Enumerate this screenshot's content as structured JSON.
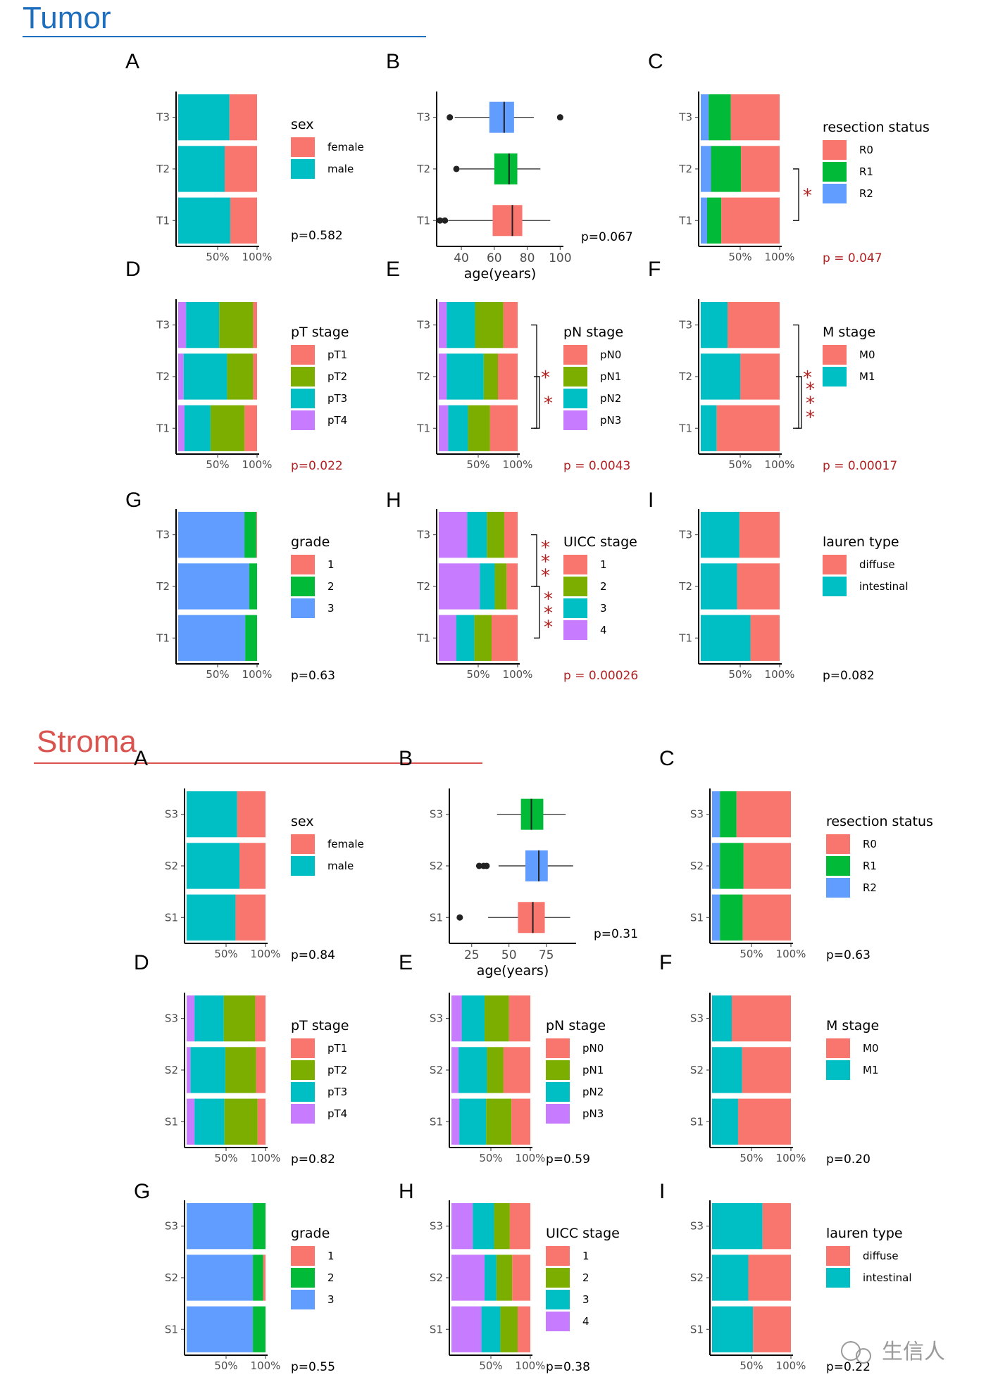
{
  "sections": [
    {
      "title": "Tumor",
      "color": "#1f6fbf",
      "ids": [
        "tA",
        "tB",
        "tC",
        "tD",
        "tE",
        "tF",
        "tG",
        "tH",
        "tI"
      ]
    },
    {
      "title": "Stroma",
      "color": "#d9534f",
      "ids": [
        "sA",
        "sB",
        "sC",
        "sD",
        "sE",
        "sF",
        "sG",
        "sH",
        "sI"
      ]
    }
  ],
  "palette": {
    "female": "#f8766d",
    "male": "#00bfc4",
    "r0": "#f8766d",
    "r1": "#00ba38",
    "r2": "#619cff",
    "pt1": "#f8766d",
    "pt2": "#7cae00",
    "pt3": "#00bfc4",
    "pt4": "#c77cff",
    "g1": "#f8766d",
    "g2": "#00ba38",
    "g3": "#619cff",
    "box_low": "#f8766d",
    "box_mid": "#00ba38",
    "box_high": "#619cff",
    "sig": "#b22222",
    "pnorm": "#000000"
  },
  "chart_data": [
    {
      "id": "tA",
      "panel": "A",
      "type": "stacked_bar_100",
      "groups": [
        "T3",
        "T2",
        "T1"
      ],
      "xticks": [
        "50%",
        "100%"
      ],
      "legend_title": "sex",
      "legend": [
        "female",
        "male"
      ],
      "colors": [
        "#f8766d",
        "#00bfc4"
      ],
      "series": [
        {
          "name": "male",
          "values": [
            0.65,
            0.59,
            0.66
          ]
        },
        {
          "name": "female",
          "values": [
            0.35,
            0.41,
            0.34
          ]
        }
      ],
      "p": "p=0.582",
      "p_sig": false
    },
    {
      "id": "tB",
      "panel": "B",
      "type": "boxplot",
      "groups": [
        "T3",
        "T2",
        "T1"
      ],
      "xlabel": "age(years)",
      "xlim": [
        25,
        102
      ],
      "xticks": [
        40,
        60,
        80,
        100
      ],
      "colors": [
        "#619cff",
        "#00ba38",
        "#f8766d"
      ],
      "boxes": [
        {
          "min": 36,
          "q1": 57,
          "median": 66,
          "q3": 72,
          "max": 84,
          "outliers": [
            33,
            100
          ]
        },
        {
          "min": 39,
          "q1": 60,
          "median": 69,
          "q3": 74,
          "max": 88,
          "outliers": [
            37
          ]
        },
        {
          "min": 32,
          "q1": 59,
          "median": 71,
          "q3": 77,
          "max": 94,
          "outliers": [
            27,
            30
          ]
        }
      ],
      "p": "p=0.067",
      "p_sig": false
    },
    {
      "id": "tC",
      "panel": "C",
      "type": "stacked_bar_100",
      "groups": [
        "T3",
        "T2",
        "T1"
      ],
      "xticks": [
        "50%",
        "100%"
      ],
      "legend_title": "resection status",
      "legend": [
        "R0",
        "R1",
        "R2"
      ],
      "colors": [
        "#f8766d",
        "#00ba38",
        "#619cff"
      ],
      "series": [
        {
          "name": "R2",
          "values": [
            0.1,
            0.13,
            0.08
          ]
        },
        {
          "name": "R1",
          "values": [
            0.28,
            0.38,
            0.18
          ]
        },
        {
          "name": "R0",
          "values": [
            0.62,
            0.49,
            0.74
          ]
        }
      ],
      "brackets": [
        {
          "from": 1,
          "to": 2,
          "stars": "*"
        }
      ],
      "p": "p = 0.047",
      "p_sig": true
    },
    {
      "id": "tD",
      "panel": "D",
      "type": "stacked_bar_100",
      "groups": [
        "T3",
        "T2",
        "T1"
      ],
      "xticks": [
        "50%",
        "100%"
      ],
      "legend_title": "pT stage",
      "legend": [
        "pT1",
        "pT2",
        "pT3",
        "pT4"
      ],
      "colors": [
        "#f8766d",
        "#7cae00",
        "#00bfc4",
        "#c77cff"
      ],
      "series": [
        {
          "name": "pT4",
          "values": [
            0.1,
            0.07,
            0.08
          ]
        },
        {
          "name": "pT3",
          "values": [
            0.42,
            0.55,
            0.33
          ]
        },
        {
          "name": "pT2",
          "values": [
            0.43,
            0.33,
            0.43
          ]
        },
        {
          "name": "pT1",
          "values": [
            0.05,
            0.05,
            0.16
          ]
        }
      ],
      "p": "p=0.022",
      "p_sig": true
    },
    {
      "id": "tE",
      "panel": "E",
      "type": "stacked_bar_100",
      "groups": [
        "T3",
        "T2",
        "T1"
      ],
      "xticks": [
        "50%",
        "100%"
      ],
      "legend_title": "pN stage",
      "legend": [
        "pN0",
        "pN1",
        "pN2",
        "pN3"
      ],
      "colors": [
        "#f8766d",
        "#7cae00",
        "#00bfc4",
        "#c77cff"
      ],
      "series": [
        {
          "name": "pN3",
          "values": [
            0.1,
            0.1,
            0.12
          ]
        },
        {
          "name": "pN2",
          "values": [
            0.36,
            0.47,
            0.25
          ]
        },
        {
          "name": "pN1",
          "values": [
            0.36,
            0.18,
            0.28
          ]
        },
        {
          "name": "pN0",
          "values": [
            0.18,
            0.25,
            0.35
          ]
        }
      ],
      "brackets": [
        {
          "from": 0,
          "to": 2,
          "stars": "*"
        },
        {
          "from": 1,
          "to": 2,
          "stars": "*"
        }
      ],
      "p": "p = 0.0043",
      "p_sig": true
    },
    {
      "id": "tF",
      "panel": "F",
      "type": "stacked_bar_100",
      "groups": [
        "T3",
        "T2",
        "T1"
      ],
      "xticks": [
        "50%",
        "100%"
      ],
      "legend_title": "M stage",
      "legend": [
        "M0",
        "M1"
      ],
      "colors": [
        "#f8766d",
        "#00bfc4"
      ],
      "series": [
        {
          "name": "M1",
          "values": [
            0.34,
            0.5,
            0.2
          ]
        },
        {
          "name": "M0",
          "values": [
            0.66,
            0.5,
            0.8
          ]
        }
      ],
      "brackets": [
        {
          "from": 0,
          "to": 2,
          "stars": "*"
        },
        {
          "from": 1,
          "to": 2,
          "stars": "***"
        }
      ],
      "p": "p = 0.00017",
      "p_sig": true
    },
    {
      "id": "tG",
      "panel": "G",
      "type": "stacked_bar_100",
      "groups": [
        "T3",
        "T2",
        "T1"
      ],
      "xticks": [
        "50%",
        "100%"
      ],
      "legend_title": "grade",
      "legend": [
        "1",
        "2",
        "3"
      ],
      "colors": [
        "#f8766d",
        "#00ba38",
        "#619cff"
      ],
      "series": [
        {
          "name": "3",
          "values": [
            0.84,
            0.9,
            0.85
          ]
        },
        {
          "name": "2",
          "values": [
            0.15,
            0.1,
            0.15
          ]
        },
        {
          "name": "1",
          "values": [
            0.01,
            0,
            0
          ]
        }
      ],
      "p": "p=0.63",
      "p_sig": false
    },
    {
      "id": "tH",
      "panel": "H",
      "type": "stacked_bar_100",
      "groups": [
        "T3",
        "T2",
        "T1"
      ],
      "xticks": [
        "50%",
        "100%"
      ],
      "legend_title": "UICC stage",
      "legend": [
        "1",
        "2",
        "3",
        "4"
      ],
      "colors": [
        "#f8766d",
        "#7cae00",
        "#00bfc4",
        "#c77cff"
      ],
      "series": [
        {
          "name": "4",
          "values": [
            0.36,
            0.52,
            0.22
          ]
        },
        {
          "name": "3",
          "values": [
            0.25,
            0.19,
            0.23
          ]
        },
        {
          "name": "2",
          "values": [
            0.22,
            0.15,
            0.22
          ]
        },
        {
          "name": "1",
          "values": [
            0.17,
            0.14,
            0.33
          ]
        }
      ],
      "brackets": [
        {
          "from": 0,
          "to": 1,
          "stars": "***"
        },
        {
          "from": 1,
          "to": 2,
          "stars": "***"
        }
      ],
      "p": "p = 0.00026",
      "p_sig": true
    },
    {
      "id": "tI",
      "panel": "I",
      "type": "stacked_bar_100",
      "groups": [
        "T3",
        "T2",
        "T1"
      ],
      "xticks": [
        "50%",
        "100%"
      ],
      "legend_title": "lauren type",
      "legend": [
        "diffuse",
        "intestinal"
      ],
      "colors": [
        "#f8766d",
        "#00bfc4"
      ],
      "series": [
        {
          "name": "intestinal",
          "values": [
            0.49,
            0.46,
            0.63
          ]
        },
        {
          "name": "diffuse",
          "values": [
            0.51,
            0.54,
            0.37
          ]
        }
      ],
      "p": "p=0.082",
      "p_sig": false
    },
    {
      "id": "sA",
      "panel": "A",
      "type": "stacked_bar_100",
      "groups": [
        "S3",
        "S2",
        "S1"
      ],
      "xticks": [
        "50%",
        "100%"
      ],
      "legend_title": "sex",
      "legend": [
        "female",
        "male"
      ],
      "colors": [
        "#f8766d",
        "#00bfc4"
      ],
      "series": [
        {
          "name": "male",
          "values": [
            0.64,
            0.67,
            0.62
          ]
        },
        {
          "name": "female",
          "values": [
            0.36,
            0.33,
            0.38
          ]
        }
      ],
      "p": "p=0.84",
      "p_sig": false
    },
    {
      "id": "sB",
      "panel": "B",
      "type": "boxplot",
      "groups": [
        "S3",
        "S2",
        "S1"
      ],
      "xlabel": "age(years)",
      "xlim": [
        10,
        95
      ],
      "xticks": [
        25,
        50,
        75
      ],
      "colors": [
        "#00ba38",
        "#619cff",
        "#f8766d"
      ],
      "boxes": [
        {
          "min": 42,
          "q1": 58,
          "median": 65,
          "q3": 73,
          "max": 88,
          "outliers": []
        },
        {
          "min": 43,
          "q1": 61,
          "median": 70,
          "q3": 76,
          "max": 93,
          "outliers": [
            30,
            33,
            35
          ]
        },
        {
          "min": 36,
          "q1": 56,
          "median": 66,
          "q3": 74,
          "max": 91,
          "outliers": [
            17
          ]
        }
      ],
      "p": "p=0.31",
      "p_sig": false
    },
    {
      "id": "sC",
      "panel": "C",
      "type": "stacked_bar_100",
      "groups": [
        "S3",
        "S2",
        "S1"
      ],
      "xticks": [
        "50%",
        "100%"
      ],
      "legend_title": "resection status",
      "legend": [
        "R0",
        "R1",
        "R2"
      ],
      "colors": [
        "#f8766d",
        "#00ba38",
        "#619cff"
      ],
      "series": [
        {
          "name": "R2",
          "values": [
            0.1,
            0.1,
            0.1
          ]
        },
        {
          "name": "R1",
          "values": [
            0.21,
            0.3,
            0.29
          ]
        },
        {
          "name": "R0",
          "values": [
            0.69,
            0.6,
            0.61
          ]
        }
      ],
      "p": "p=0.63",
      "p_sig": false
    },
    {
      "id": "sD",
      "panel": "D",
      "type": "stacked_bar_100",
      "groups": [
        "S3",
        "S2",
        "S1"
      ],
      "xticks": [
        "50%",
        "100%"
      ],
      "legend_title": "pT stage",
      "legend": [
        "pT1",
        "pT2",
        "pT3",
        "pT4"
      ],
      "colors": [
        "#f8766d",
        "#7cae00",
        "#00bfc4",
        "#c77cff"
      ],
      "series": [
        {
          "name": "pT4",
          "values": [
            0.1,
            0.05,
            0.1
          ]
        },
        {
          "name": "pT3",
          "values": [
            0.37,
            0.44,
            0.38
          ]
        },
        {
          "name": "pT2",
          "values": [
            0.4,
            0.39,
            0.42
          ]
        },
        {
          "name": "pT1",
          "values": [
            0.13,
            0.12,
            0.1
          ]
        }
      ],
      "p": "p=0.82",
      "p_sig": false
    },
    {
      "id": "sE",
      "panel": "E",
      "type": "stacked_bar_100",
      "groups": [
        "S3",
        "S2",
        "S1"
      ],
      "xticks": [
        "50%",
        "100%"
      ],
      "legend_title": "pN stage",
      "legend": [
        "pN0",
        "pN1",
        "pN2",
        "pN3"
      ],
      "colors": [
        "#f8766d",
        "#7cae00",
        "#00bfc4",
        "#c77cff"
      ],
      "series": [
        {
          "name": "pN3",
          "values": [
            0.13,
            0.09,
            0.1
          ]
        },
        {
          "name": "pN2",
          "values": [
            0.29,
            0.36,
            0.34
          ]
        },
        {
          "name": "pN1",
          "values": [
            0.31,
            0.21,
            0.32
          ]
        },
        {
          "name": "pN0",
          "values": [
            0.27,
            0.34,
            0.24
          ]
        }
      ],
      "p": "p=0.59",
      "p_sig": false
    },
    {
      "id": "sF",
      "panel": "F",
      "type": "stacked_bar_100",
      "groups": [
        "S3",
        "S2",
        "S1"
      ],
      "xticks": [
        "50%",
        "100%"
      ],
      "legend_title": "M stage",
      "legend": [
        "M0",
        "M1"
      ],
      "colors": [
        "#f8766d",
        "#00bfc4"
      ],
      "series": [
        {
          "name": "M1",
          "values": [
            0.25,
            0.38,
            0.33
          ]
        },
        {
          "name": "M0",
          "values": [
            0.75,
            0.62,
            0.67
          ]
        }
      ],
      "p": "p=0.20",
      "p_sig": false
    },
    {
      "id": "sG",
      "panel": "G",
      "type": "stacked_bar_100",
      "groups": [
        "S3",
        "S2",
        "S1"
      ],
      "xticks": [
        "50%",
        "100%"
      ],
      "legend_title": "grade",
      "legend": [
        "1",
        "2",
        "3"
      ],
      "colors": [
        "#f8766d",
        "#00ba38",
        "#619cff"
      ],
      "series": [
        {
          "name": "3",
          "values": [
            0.84,
            0.84,
            0.84
          ]
        },
        {
          "name": "2",
          "values": [
            0.16,
            0.13,
            0.16
          ]
        },
        {
          "name": "1",
          "values": [
            0,
            0.03,
            0
          ]
        }
      ],
      "p": "p=0.55",
      "p_sig": false
    },
    {
      "id": "sH",
      "panel": "H",
      "type": "stacked_bar_100",
      "groups": [
        "S3",
        "S2",
        "S1"
      ],
      "xticks": [
        "50%",
        "100%"
      ],
      "legend_title": "UICC stage",
      "legend": [
        "1",
        "2",
        "3",
        "4"
      ],
      "colors": [
        "#f8766d",
        "#7cae00",
        "#00bfc4",
        "#c77cff"
      ],
      "series": [
        {
          "name": "4",
          "values": [
            0.27,
            0.42,
            0.38
          ]
        },
        {
          "name": "3",
          "values": [
            0.27,
            0.15,
            0.24
          ]
        },
        {
          "name": "2",
          "values": [
            0.2,
            0.2,
            0.22
          ]
        },
        {
          "name": "1",
          "values": [
            0.26,
            0.23,
            0.16
          ]
        }
      ],
      "p": "p=0.38",
      "p_sig": false
    },
    {
      "id": "sI",
      "panel": "I",
      "type": "stacked_bar_100",
      "groups": [
        "S3",
        "S2",
        "S1"
      ],
      "xticks": [
        "50%",
        "100%"
      ],
      "legend_title": "lauren type",
      "legend": [
        "diffuse",
        "intestinal"
      ],
      "colors": [
        "#f8766d",
        "#00bfc4"
      ],
      "series": [
        {
          "name": "intestinal",
          "values": [
            0.64,
            0.46,
            0.52
          ]
        },
        {
          "name": "diffuse",
          "values": [
            0.36,
            0.54,
            0.48
          ]
        }
      ],
      "p": "p=0.22",
      "p_sig": false
    }
  ],
  "watermark": "生信人"
}
